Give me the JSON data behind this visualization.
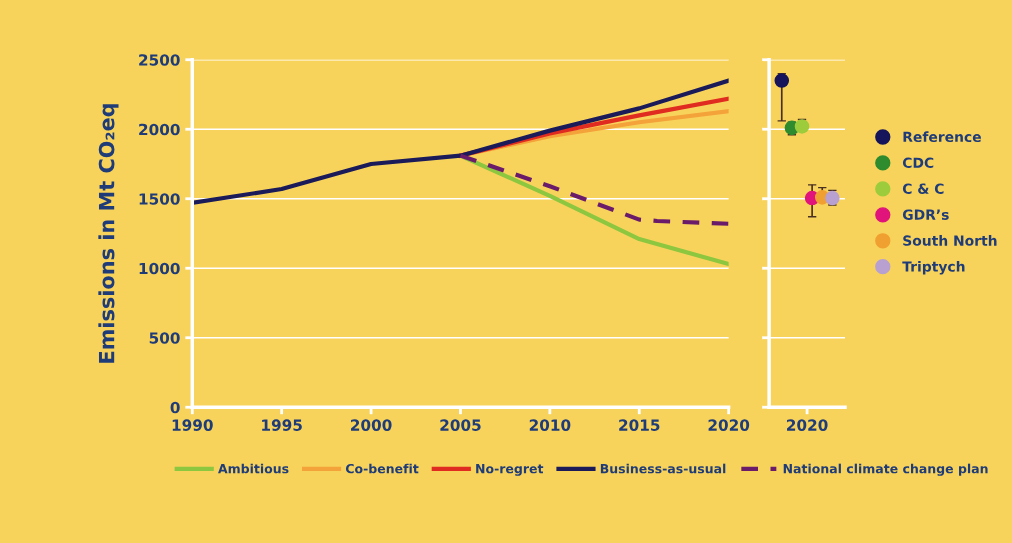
{
  "chart_data": [
    {
      "type": "line",
      "ylabel": "Emissions in Mt CO₂eq",
      "xlim": [
        1990,
        2020
      ],
      "xticks": [
        1990,
        1995,
        2000,
        2005,
        2010,
        2015,
        2020
      ],
      "ylim": [
        0,
        2500
      ],
      "yticks": [
        0,
        500,
        1000,
        1500,
        2000,
        2500
      ],
      "grid": "y",
      "legend": "bottom",
      "marker": "none",
      "series": [
        {
          "name": "Ambitious",
          "color": "#8dc63f",
          "line_style": "solid",
          "x": [
            2005,
            2010,
            2015,
            2020
          ],
          "values": [
            1810,
            1520,
            1210,
            1030
          ]
        },
        {
          "name": "Co-benefit",
          "color": "#f4a23a",
          "line_style": "solid",
          "x": [
            2005,
            2010,
            2015,
            2020
          ],
          "values": [
            1810,
            1950,
            2050,
            2130
          ]
        },
        {
          "name": "No-regret",
          "color": "#e02b20",
          "line_style": "solid",
          "x": [
            2005,
            2010,
            2015,
            2020
          ],
          "values": [
            1810,
            1970,
            2100,
            2220
          ]
        },
        {
          "name": "Business-as-usual",
          "color": "#1b1b5a",
          "line_style": "solid",
          "x": [
            1990,
            1995,
            2000,
            2005,
            2010,
            2015,
            2020
          ],
          "values": [
            1470,
            1570,
            1750,
            1810,
            1990,
            2150,
            2350
          ]
        },
        {
          "name": "National climate change plan",
          "color": "#6a1b6a",
          "line_style": "dashed",
          "x": [
            2005,
            2010,
            2015,
            2016,
            2020
          ],
          "values": [
            1810,
            1590,
            1350,
            1340,
            1320
          ]
        }
      ]
    },
    {
      "type": "scatter",
      "categories": [
        "2020"
      ],
      "ylim": [
        0,
        2500
      ],
      "yticks": [
        0,
        500,
        1000,
        1500,
        2000,
        2500
      ],
      "tick_labels": "x",
      "grid": "y",
      "legend": "right",
      "marker": "circle",
      "series": [
        {
          "name": "Reference",
          "color": "#16145a",
          "values": [
            2350
          ],
          "errors": [
            [
              2060,
              2400
            ]
          ]
        },
        {
          "name": "CDC",
          "color": "#2e8b2e",
          "values": [
            2010
          ],
          "errors": [
            [
              1960,
              2050
            ]
          ]
        },
        {
          "name": "C & C",
          "color": "#9ccc3c",
          "values": [
            2020
          ],
          "errors": [
            [
              1985,
              2070
            ]
          ]
        },
        {
          "name": "GDR’s",
          "color": "#e0147a",
          "values": [
            1505
          ],
          "errors": [
            [
              1370,
              1600
            ]
          ]
        },
        {
          "name": "South North",
          "color": "#f0a030",
          "values": [
            1510
          ],
          "errors": [
            [
              1505,
              1580
            ]
          ]
        },
        {
          "name": "Triptych",
          "color": "#b8a0d0",
          "values": [
            1505
          ],
          "errors": [
            [
              1455,
              1560
            ]
          ]
        }
      ]
    }
  ]
}
